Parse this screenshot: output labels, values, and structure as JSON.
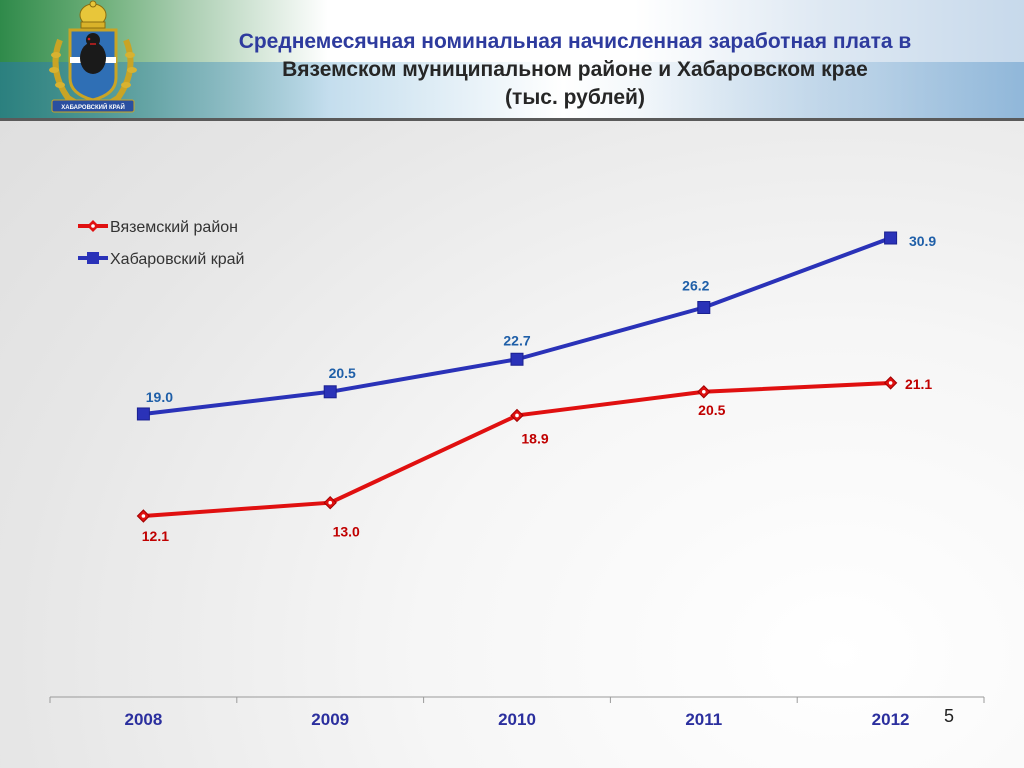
{
  "header": {
    "title_line1": "Среднемесячная номинальная начисленная заработная плата в",
    "title_line2": "Вяземском муниципальном районе и Хабаровском крае",
    "title_line3": "(тыс. рублей)",
    "emblem_caption": "ХАБАРОВСКИЙ КРАЙ"
  },
  "page_number": "5",
  "colors": {
    "series_red": "#e01010",
    "series_blue": "#2a32b8",
    "red_label": "#c00000",
    "blue_label": "#1f5fa8",
    "axis_label": "#2b2f9e"
  },
  "chart_data": {
    "type": "line",
    "categories": [
      "2008",
      "2009",
      "2010",
      "2011",
      "2012"
    ],
    "series": [
      {
        "name": "Вяземский район",
        "values": [
          12.1,
          13.0,
          18.9,
          20.5,
          21.1
        ],
        "labels": [
          "12.1",
          "13.0",
          "18.9",
          "20.5",
          "21.1"
        ],
        "marker": "diamond"
      },
      {
        "name": "Хабаровский край",
        "values": [
          19.0,
          20.5,
          22.7,
          26.2,
          30.9
        ],
        "labels": [
          "19.0",
          "20.5",
          "22.7",
          "26.2",
          "30.9"
        ],
        "marker": "square"
      }
    ],
    "title": "",
    "xlabel": "",
    "ylabel": "",
    "ylim": [
      0,
      35
    ],
    "grid": false,
    "legend": "top-left"
  }
}
